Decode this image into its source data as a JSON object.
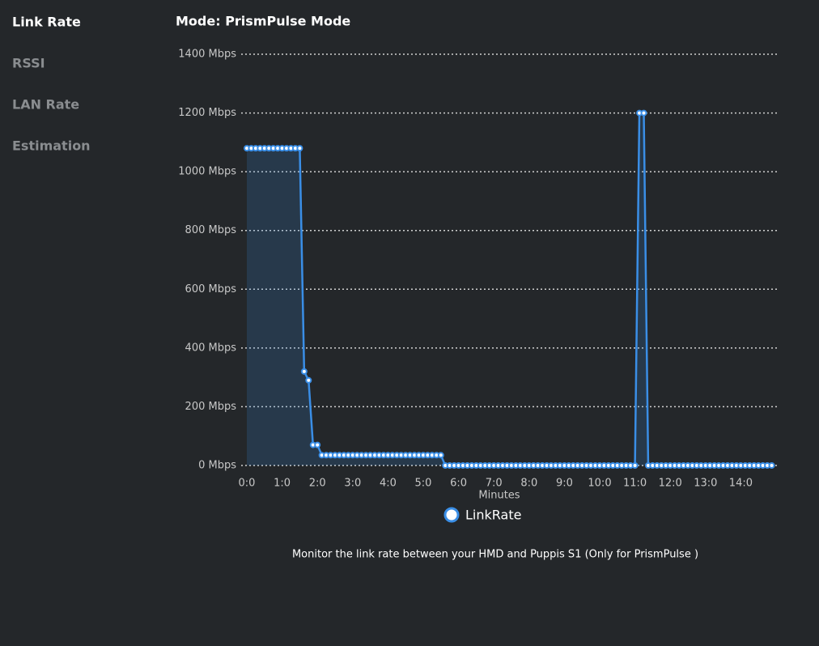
{
  "sidebar": {
    "items": [
      "Link Rate",
      "RSSI",
      "LAN Rate",
      "Estimation"
    ],
    "active": 0
  },
  "chart_data": {
    "type": "line",
    "title": "Mode: PrismPulse Mode",
    "x_label": "Minutes",
    "x": [
      0,
      0.125,
      0.25,
      0.375,
      0.5,
      0.625,
      0.75,
      0.875,
      1,
      1.125,
      1.25,
      1.375,
      1.5,
      1.625,
      1.75,
      1.875,
      2,
      2.125,
      2.25,
      2.375,
      2.5,
      2.625,
      2.75,
      2.875,
      3,
      3.125,
      3.25,
      3.375,
      3.5,
      3.625,
      3.75,
      3.875,
      4,
      4.125,
      4.25,
      4.375,
      4.5,
      4.625,
      4.75,
      4.875,
      5,
      5.125,
      5.25,
      5.375,
      5.5,
      5.625,
      5.75,
      5.875,
      6,
      6.125,
      6.25,
      6.375,
      6.5,
      6.625,
      6.75,
      6.875,
      7,
      7.125,
      7.25,
      7.375,
      7.5,
      7.625,
      7.75,
      7.875,
      8,
      8.125,
      8.25,
      8.375,
      8.5,
      8.625,
      8.75,
      8.875,
      9,
      9.125,
      9.25,
      9.375,
      9.5,
      9.625,
      9.75,
      9.875,
      10,
      10.125,
      10.25,
      10.375,
      10.5,
      10.625,
      10.75,
      10.875,
      11,
      11.125,
      11.25,
      11.375,
      11.5,
      11.625,
      11.75,
      11.875,
      12,
      12.125,
      12.25,
      12.375,
      12.5,
      12.625,
      12.75,
      12.875,
      13,
      13.125,
      13.25,
      13.375,
      13.5,
      13.625,
      13.75,
      13.875,
      14,
      14.125,
      14.25,
      14.375,
      14.5,
      14.625,
      14.75,
      14.875
    ],
    "xlim": [
      0,
      15
    ],
    "xticks": [
      {
        "value": 0,
        "label": "0:0"
      },
      {
        "value": 1,
        "label": "1:0"
      },
      {
        "value": 2,
        "label": "2:0"
      },
      {
        "value": 3,
        "label": "3:0"
      },
      {
        "value": 4,
        "label": "4:0"
      },
      {
        "value": 5,
        "label": "5:0"
      },
      {
        "value": 6,
        "label": "6:0"
      },
      {
        "value": 7,
        "label": "7:0"
      },
      {
        "value": 8,
        "label": "8:0"
      },
      {
        "value": 9,
        "label": "9:0"
      },
      {
        "value": 10,
        "label": "10:0"
      },
      {
        "value": 11,
        "label": "11:0"
      },
      {
        "value": 12,
        "label": "12:0"
      },
      {
        "value": 13,
        "label": "13:0"
      },
      {
        "value": 14,
        "label": "14:0"
      }
    ],
    "ylim": [
      0,
      1400
    ],
    "yticks": [
      {
        "value": 0,
        "label": "0 Mbps"
      },
      {
        "value": 200,
        "label": "200 Mbps"
      },
      {
        "value": 400,
        "label": "400 Mbps"
      },
      {
        "value": 600,
        "label": "600 Mbps"
      },
      {
        "value": 800,
        "label": "800 Mbps"
      },
      {
        "value": 1000,
        "label": "1000 Mbps"
      },
      {
        "value": 1200,
        "label": "1200 Mbps"
      },
      {
        "value": 1400,
        "label": "1400 Mbps"
      }
    ],
    "grid": true,
    "area": true,
    "series": [
      {
        "name": "LinkRate",
        "color": "#3a8ee6",
        "values": [
          1080,
          1080,
          1080,
          1080,
          1080,
          1080,
          1080,
          1080,
          1080,
          1080,
          1080,
          1080,
          1080,
          320,
          290,
          70,
          70,
          35,
          35,
          35,
          35,
          35,
          35,
          35,
          35,
          35,
          35,
          35,
          35,
          35,
          35,
          35,
          35,
          35,
          35,
          35,
          35,
          35,
          35,
          35,
          35,
          35,
          35,
          35,
          35,
          0,
          0,
          0,
          0,
          0,
          0,
          0,
          0,
          0,
          0,
          0,
          0,
          0,
          0,
          0,
          0,
          0,
          0,
          0,
          0,
          0,
          0,
          0,
          0,
          0,
          0,
          0,
          0,
          0,
          0,
          0,
          0,
          0,
          0,
          0,
          0,
          0,
          0,
          0,
          0,
          0,
          0,
          0,
          0,
          1200,
          1200,
          0,
          0,
          0,
          0,
          0,
          0,
          0,
          0,
          0,
          0,
          0,
          0,
          0,
          0,
          0,
          0,
          0,
          0,
          0,
          0,
          0,
          0,
          0,
          0,
          0,
          0,
          0,
          0,
          0
        ]
      }
    ]
  },
  "footer": {
    "text": "Monitor the link rate between your HMD and Puppis S1 (Only for PrismPulse )"
  }
}
